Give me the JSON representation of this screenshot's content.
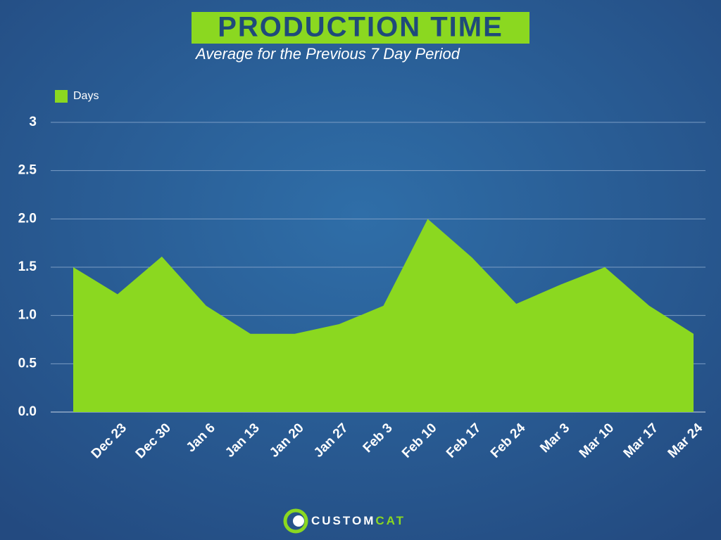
{
  "chart_data": {
    "type": "area",
    "title": "PRODUCTION TIME",
    "subtitle": "Average for the Previous 7 Day Period",
    "categories": [
      null,
      "Dec 23",
      "Dec 30",
      "Jan 6",
      "Jan 13",
      "Jan 20",
      "Jan 27",
      "Feb 3",
      "Feb 10",
      "Feb 17",
      "Feb 24",
      "Mar 3",
      "Mar 10",
      "Mar 17",
      "Mar 24"
    ],
    "series": [
      {
        "name": "Days",
        "color": "#8bd820",
        "values": [
          1.5,
          1.22,
          1.61,
          1.1,
          0.81,
          0.81,
          0.91,
          1.1,
          2.0,
          1.6,
          1.12,
          1.32,
          1.5,
          1.1,
          0.81
        ]
      }
    ],
    "ylim": [
      0,
      3
    ],
    "yticks": [
      {
        "value": 0,
        "label": "0.0"
      },
      0.5,
      {
        "value": 1,
        "label": "1.0"
      },
      1.5,
      {
        "value": 2,
        "label": "2.0"
      },
      2.5,
      3
    ],
    "grid": true,
    "legend": "top-left"
  },
  "footer": {
    "brand": "CUSTOM",
    "brand_accent": "CAT"
  }
}
